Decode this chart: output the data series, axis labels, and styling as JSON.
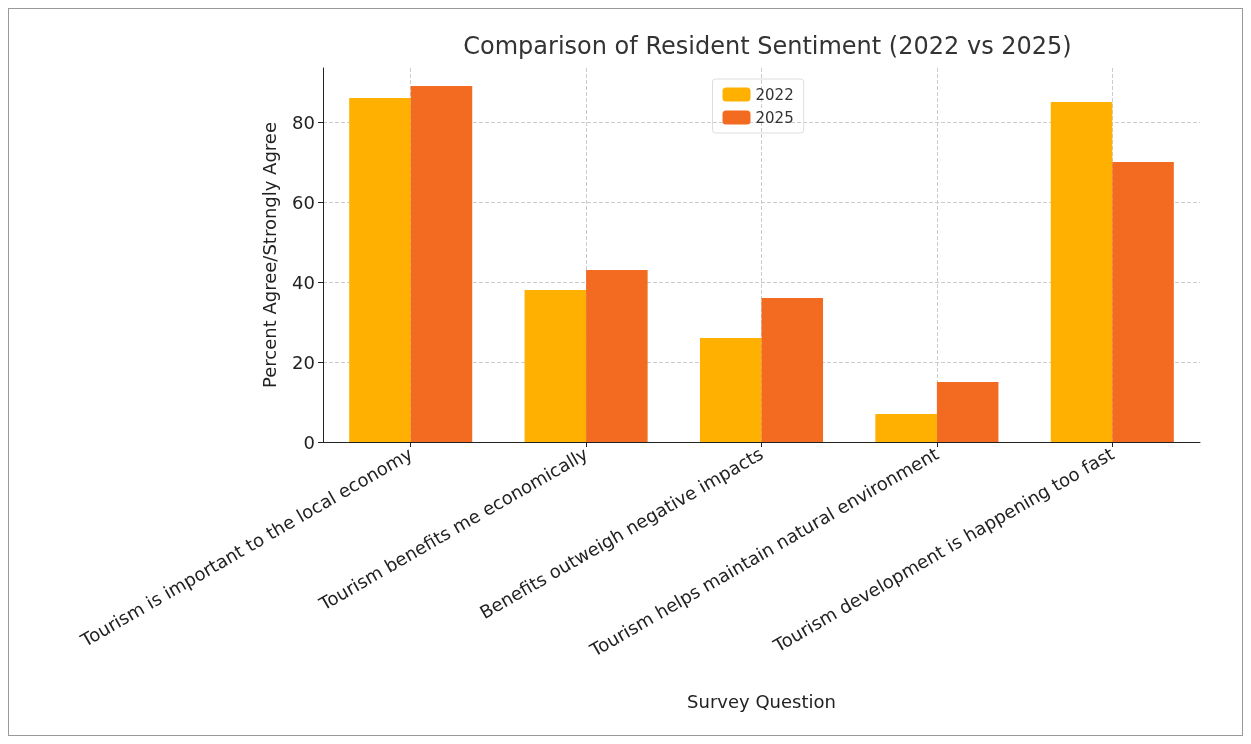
{
  "chart_data": {
    "type": "bar",
    "title": "Comparison of Resident Sentiment (2022 vs 2025)",
    "xlabel": "Survey Question",
    "ylabel": "Percent Agree/Strongly Agree",
    "categories": [
      "Tourism is important to the local economy",
      "Tourism benefits me economically",
      "Benefits outweigh negative impacts",
      "Tourism helps maintain natural environment",
      "Tourism development is happening too fast"
    ],
    "series": [
      {
        "name": "2022",
        "color": "#ffb000",
        "values": [
          86,
          38,
          26,
          7,
          85
        ]
      },
      {
        "name": "2025",
        "color": "#f26b21",
        "values": [
          89,
          43,
          36,
          15,
          70
        ]
      }
    ],
    "ylim": [
      0,
      93.5
    ],
    "yticks": [
      0,
      20,
      40,
      60,
      80
    ],
    "grid": true,
    "legend": "top"
  }
}
